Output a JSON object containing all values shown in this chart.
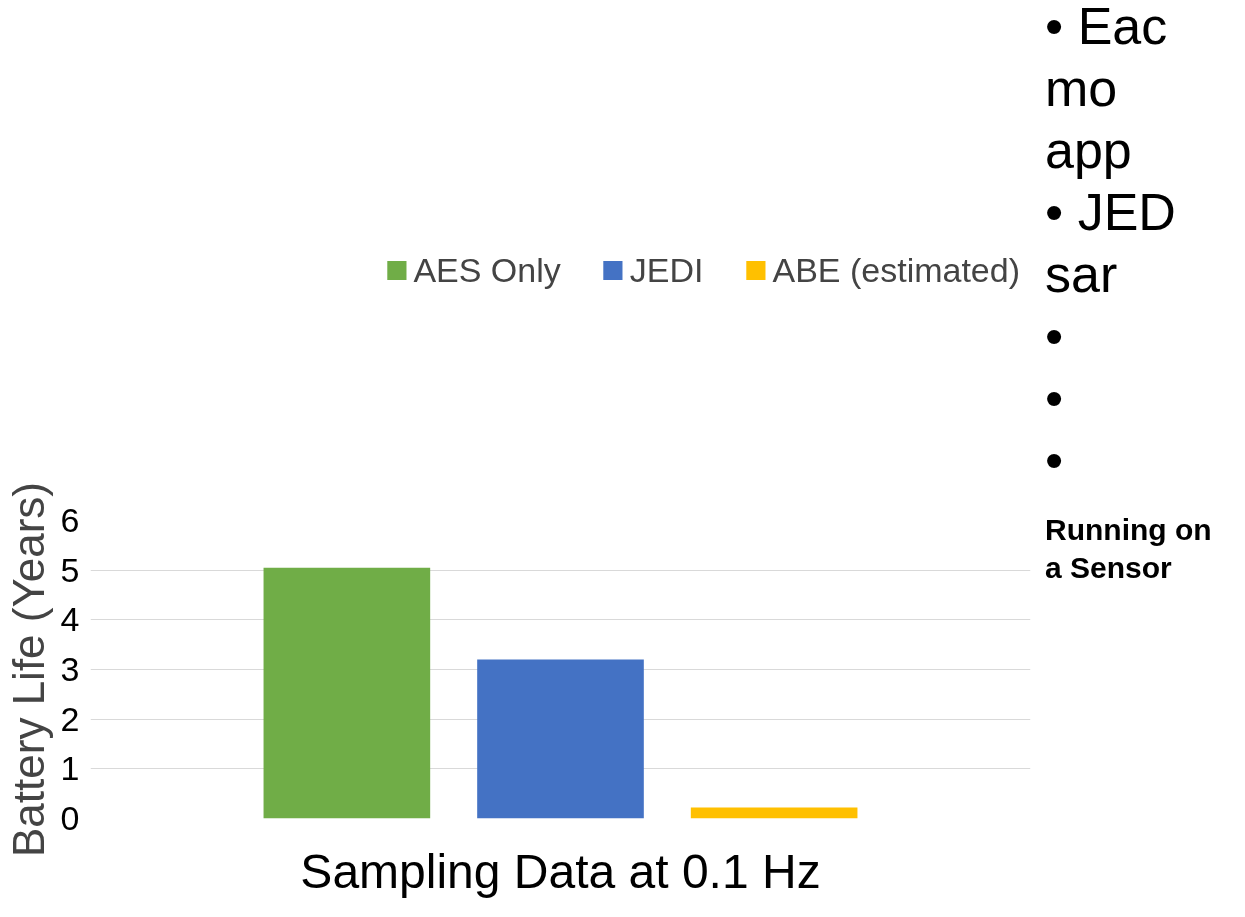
{
  "chart_data": {
    "type": "bar",
    "categories": [
      "Sampling Data at 0.1 Hz"
    ],
    "ylabel": "Battery Life (Years)",
    "series": [
      {
        "name": "AES Only",
        "color": "#70ad47",
        "values": [
          5.05
        ]
      },
      {
        "name": "JEDI",
        "color": "#4472c4",
        "values": [
          3.2
        ]
      },
      {
        "name": "ABE (estimated)",
        "color": "#ffc000",
        "values": [
          0.22
        ]
      }
    ],
    "ylim": [
      0,
      6
    ],
    "yticks": [
      0,
      1,
      2,
      3,
      4,
      5,
      6
    ],
    "grid": "y",
    "legend": "top",
    "annotations": [
      "• Eac",
      "mo",
      "app",
      "• JED",
      "sar",
      "•",
      "•",
      "•",
      "Running on a Sensor"
    ]
  }
}
